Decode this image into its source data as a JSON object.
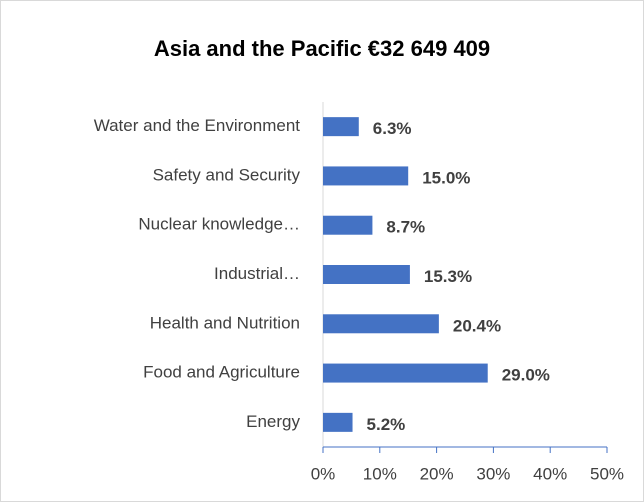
{
  "chart_data": {
    "type": "bar",
    "orientation": "horizontal",
    "title": "Asia and the Pacific €32 649 409",
    "categories": [
      "Water and the Environment",
      "Safety and Security",
      "Nuclear knowledge…",
      "Industrial…",
      "Health and Nutrition",
      "Food and Agriculture",
      "Energy"
    ],
    "values": [
      6.3,
      15.0,
      8.7,
      15.3,
      20.4,
      29.0,
      5.2
    ],
    "value_labels": [
      "6.3%",
      "15.0%",
      "8.7%",
      "15.3%",
      "20.4%",
      "29.0%",
      "5.2%"
    ],
    "color": "#4472c4",
    "xlim": [
      0,
      50
    ],
    "xticks": [
      {
        "value": 0,
        "label": "0%"
      },
      {
        "value": 10,
        "label": "10%"
      },
      {
        "value": 20,
        "label": "20%"
      },
      {
        "value": 30,
        "label": "30%"
      },
      {
        "value": 40,
        "label": "40%"
      },
      {
        "value": 50,
        "label": "50%"
      }
    ]
  }
}
